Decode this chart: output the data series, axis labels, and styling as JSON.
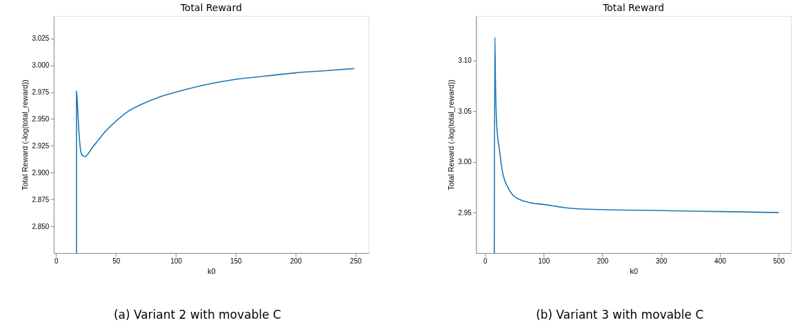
{
  "chart_data": [
    {
      "type": "line",
      "title": "Total Reward",
      "xlabel": "k0",
      "ylabel": "Total Reward (-log(total_reward))",
      "series": [
        {
          "color": "#1f77b4",
          "x": [
            17,
            17,
            18,
            19,
            20,
            21,
            22,
            24,
            27,
            30,
            35,
            40,
            50,
            60,
            70,
            85,
            100,
            125,
            150,
            175,
            200,
            225,
            249
          ],
          "values": [
            2.825,
            2.976,
            2.96,
            2.938,
            2.925,
            2.918,
            2.916,
            2.915,
            2.918,
            2.923,
            2.93,
            2.937,
            2.948,
            2.957,
            2.963,
            2.97,
            2.975,
            2.982,
            2.987,
            2.99,
            2.993,
            2.995,
            2.997
          ]
        }
      ],
      "xlim": [
        -2,
        261
      ],
      "ylim": [
        2.825,
        3.046
      ],
      "xticks": [
        0,
        50,
        100,
        150,
        200,
        250
      ],
      "yticks": [
        {
          "value": 2.85,
          "label": "2.850"
        },
        {
          "value": 2.875,
          "label": "2.875"
        },
        {
          "value": 2.9,
          "label": "2.900"
        },
        {
          "value": 2.925,
          "label": "2.925"
        },
        {
          "value": 2.95,
          "label": "2.950"
        },
        {
          "value": 2.975,
          "label": "2.975"
        },
        {
          "value": 3.0,
          "label": "3.000"
        },
        {
          "value": 3.025,
          "label": "3.025"
        }
      ],
      "grid": false,
      "marker": "none",
      "line_style": "solid",
      "annotations": [
        "(a)  Variant 2 with movable C"
      ]
    },
    {
      "type": "line",
      "title": "Total Reward",
      "xlabel": "k0",
      "ylabel": "Total Reward (-log(total_reward))",
      "series": [
        {
          "color": "#1f77b4",
          "x": [
            16,
            17,
            18,
            20,
            25,
            30,
            40,
            50,
            75,
            100,
            150,
            200,
            300,
            400,
            500
          ],
          "values": [
            2.91,
            3.123,
            3.08,
            3.038,
            3.011,
            2.99,
            2.974,
            2.966,
            2.96,
            2.958,
            2.954,
            2.953,
            2.952,
            2.951,
            2.95
          ]
        }
      ],
      "xlim": [
        -15,
        521
      ],
      "ylim": [
        2.91,
        3.144
      ],
      "xticks": [
        0,
        100,
        200,
        300,
        400,
        500
      ],
      "yticks": [
        {
          "value": 2.95,
          "label": "2.95"
        },
        {
          "value": 3.0,
          "label": "3.00"
        },
        {
          "value": 3.05,
          "label": "3.05"
        },
        {
          "value": 3.1,
          "label": "3.10"
        }
      ],
      "grid": false,
      "marker": "none",
      "line_style": "solid",
      "annotations": [
        "(b)  Variant 3 with movable C"
      ]
    }
  ]
}
